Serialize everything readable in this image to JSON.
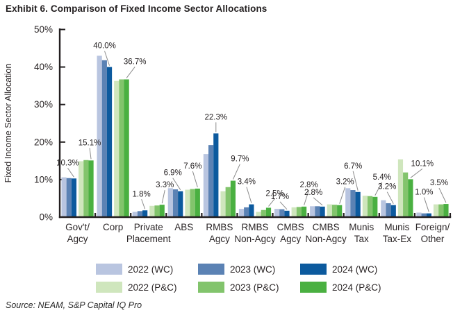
{
  "title": "Exhibit 6. Comparison of Fixed Income Sector Allocations",
  "source": "Source: NEAM, S&P Capital IQ Pro",
  "chart_data": {
    "type": "bar",
    "title": "Exhibit 6. Comparison of Fixed Income Sector Allocations",
    "xlabel": "",
    "ylabel": "Fixed Income Sector Allocation",
    "ylim": [
      0,
      50
    ],
    "ytick_values": [
      0,
      10,
      20,
      30,
      40,
      50
    ],
    "ytick_labels": [
      "0%",
      "10%",
      "20%",
      "30%",
      "40%",
      "50%"
    ],
    "grid": false,
    "legend_position": "bottom",
    "categories": [
      "Gov't/Agcy",
      "Corp",
      "Private Placement",
      "ABS",
      "RMBS Agcy",
      "RMBS Non-Agcy",
      "CMBS Agcy",
      "CMBS Non-Agcy",
      "Munis Tax",
      "Munis Tax-Ex",
      "Foreign/Other"
    ],
    "category_display": [
      [
        "Gov't/",
        "Agcy"
      ],
      [
        "Corp"
      ],
      [
        "Private",
        "Placement"
      ],
      [
        "ABS"
      ],
      [
        "RMBS",
        "Agcy"
      ],
      [
        "RMBS",
        "Non-Agcy"
      ],
      [
        "CMBS",
        "Agcy"
      ],
      [
        "CMBS",
        "Non-Agcy"
      ],
      [
        "Munis",
        "Tax"
      ],
      [
        "Munis",
        "Tax-Ex"
      ],
      [
        "Foreign/",
        "Other"
      ]
    ],
    "series": [
      {
        "name": "2022 (WC)",
        "color": "#b9c5e0",
        "values": [
          10.6,
          43.0,
          1.4,
          7.7,
          16.8,
          2.2,
          2.2,
          2.9,
          7.7,
          4.5,
          1.2
        ]
      },
      {
        "name": "2023 (WC)",
        "color": "#5b82b4",
        "values": [
          10.4,
          41.8,
          1.6,
          7.4,
          19.2,
          2.6,
          2.1,
          2.9,
          7.2,
          3.7,
          1.0
        ]
      },
      {
        "name": "2024 (WC)",
        "color": "#0c5a9e",
        "values": [
          10.3,
          40.0,
          1.8,
          6.9,
          22.3,
          3.4,
          1.7,
          2.8,
          6.7,
          3.2,
          1.0
        ]
      },
      {
        "name": "2022 (P&C)",
        "color": "#cfe6bd",
        "values": [
          14.9,
          36.3,
          3.0,
          7.3,
          6.9,
          1.4,
          2.6,
          3.4,
          5.7,
          15.4,
          3.4
        ]
      },
      {
        "name": "2023 (P&C)",
        "color": "#82c46c",
        "values": [
          15.2,
          36.7,
          3.1,
          7.5,
          8.0,
          1.9,
          2.7,
          3.3,
          5.6,
          11.9,
          3.4
        ]
      },
      {
        "name": "2024 (P&C)",
        "color": "#4ab041",
        "values": [
          15.1,
          36.7,
          3.3,
          7.6,
          9.7,
          2.5,
          2.8,
          3.2,
          5.4,
          10.1,
          3.5
        ]
      }
    ],
    "labeled_series": {
      "wc": 2,
      "pc": 5
    },
    "annotations": [
      {
        "cat": 0,
        "series": "wc",
        "text": "10.3%",
        "dx": -9,
        "lift": 19
      },
      {
        "cat": 0,
        "series": "pc",
        "text": "15.1%",
        "dx": -2,
        "lift": 22
      },
      {
        "cat": 1,
        "series": "wc",
        "text": "40.0%",
        "dx": -7,
        "lift": 27
      },
      {
        "cat": 1,
        "series": "pc",
        "text": "36.7%",
        "dx": 12,
        "lift": 22
      },
      {
        "cat": 2,
        "series": "wc",
        "text": "1.8%",
        "dx": -5,
        "lift": 20
      },
      {
        "cat": 2,
        "series": "pc",
        "text": "3.3%",
        "dx": 4,
        "lift": 25
      },
      {
        "cat": 3,
        "series": "wc",
        "text": "6.9%",
        "dx": -11,
        "lift": 23
      },
      {
        "cat": 3,
        "series": "pc",
        "text": "7.6%",
        "dx": -7,
        "lift": 29
      },
      {
        "cat": 4,
        "series": "wc",
        "text": "22.3%",
        "dx": 0,
        "lift": 20
      },
      {
        "cat": 4,
        "series": "pc",
        "text": "9.7%",
        "dx": 10,
        "lift": 28
      },
      {
        "cat": 5,
        "series": "wc",
        "text": "3.4%",
        "dx": -7,
        "lift": 29
      },
      {
        "cat": 5,
        "series": "pc",
        "text": "2.5%",
        "dx": 9,
        "lift": 17
      },
      {
        "cat": 6,
        "series": "wc",
        "text": "1.7%",
        "dx": -10,
        "lift": 17
      },
      {
        "cat": 6,
        "series": "pc",
        "text": "2.8%",
        "dx": 7,
        "lift": 28
      },
      {
        "cat": 7,
        "series": "wc",
        "text": "2.8%",
        "dx": -13,
        "lift": 17
      },
      {
        "cat": 7,
        "series": "pc",
        "text": "3.2%",
        "dx": 8,
        "lift": 30
      },
      {
        "cat": 8,
        "series": "wc",
        "text": "6.7%",
        "dx": -7,
        "lift": 34
      },
      {
        "cat": 8,
        "series": "pc",
        "text": "5.4%",
        "dx": 10,
        "lift": 25
      },
      {
        "cat": 9,
        "series": "wc",
        "text": "3.2%",
        "dx": -9,
        "lift": 23
      },
      {
        "cat": 9,
        "series": "pc",
        "text": "10.1%",
        "dx": 17,
        "lift": 19
      },
      {
        "cat": 10,
        "series": "wc",
        "text": "1.0%",
        "dx": -7,
        "lift": 27
      },
      {
        "cat": 10,
        "series": "pc",
        "text": "3.5%",
        "dx": -10,
        "lift": 27
      }
    ]
  },
  "colors": {
    "axis": "#231f20",
    "annotation_text": "#231f20",
    "leader_line": "#8a8a8a",
    "tick_text": "#2b2627",
    "category_text": "#2b2627"
  },
  "legend": {
    "items": [
      {
        "label": "2022 (WC)",
        "color": "#b9c5e0"
      },
      {
        "label": "2023 (WC)",
        "color": "#5b82b4"
      },
      {
        "label": "2024 (WC)",
        "color": "#0c5a9e"
      },
      {
        "label": "2022 (P&C)",
        "color": "#cfe6bd"
      },
      {
        "label": "2023 (P&C)",
        "color": "#82c46c"
      },
      {
        "label": "2024 (P&C)",
        "color": "#4ab041"
      }
    ]
  }
}
